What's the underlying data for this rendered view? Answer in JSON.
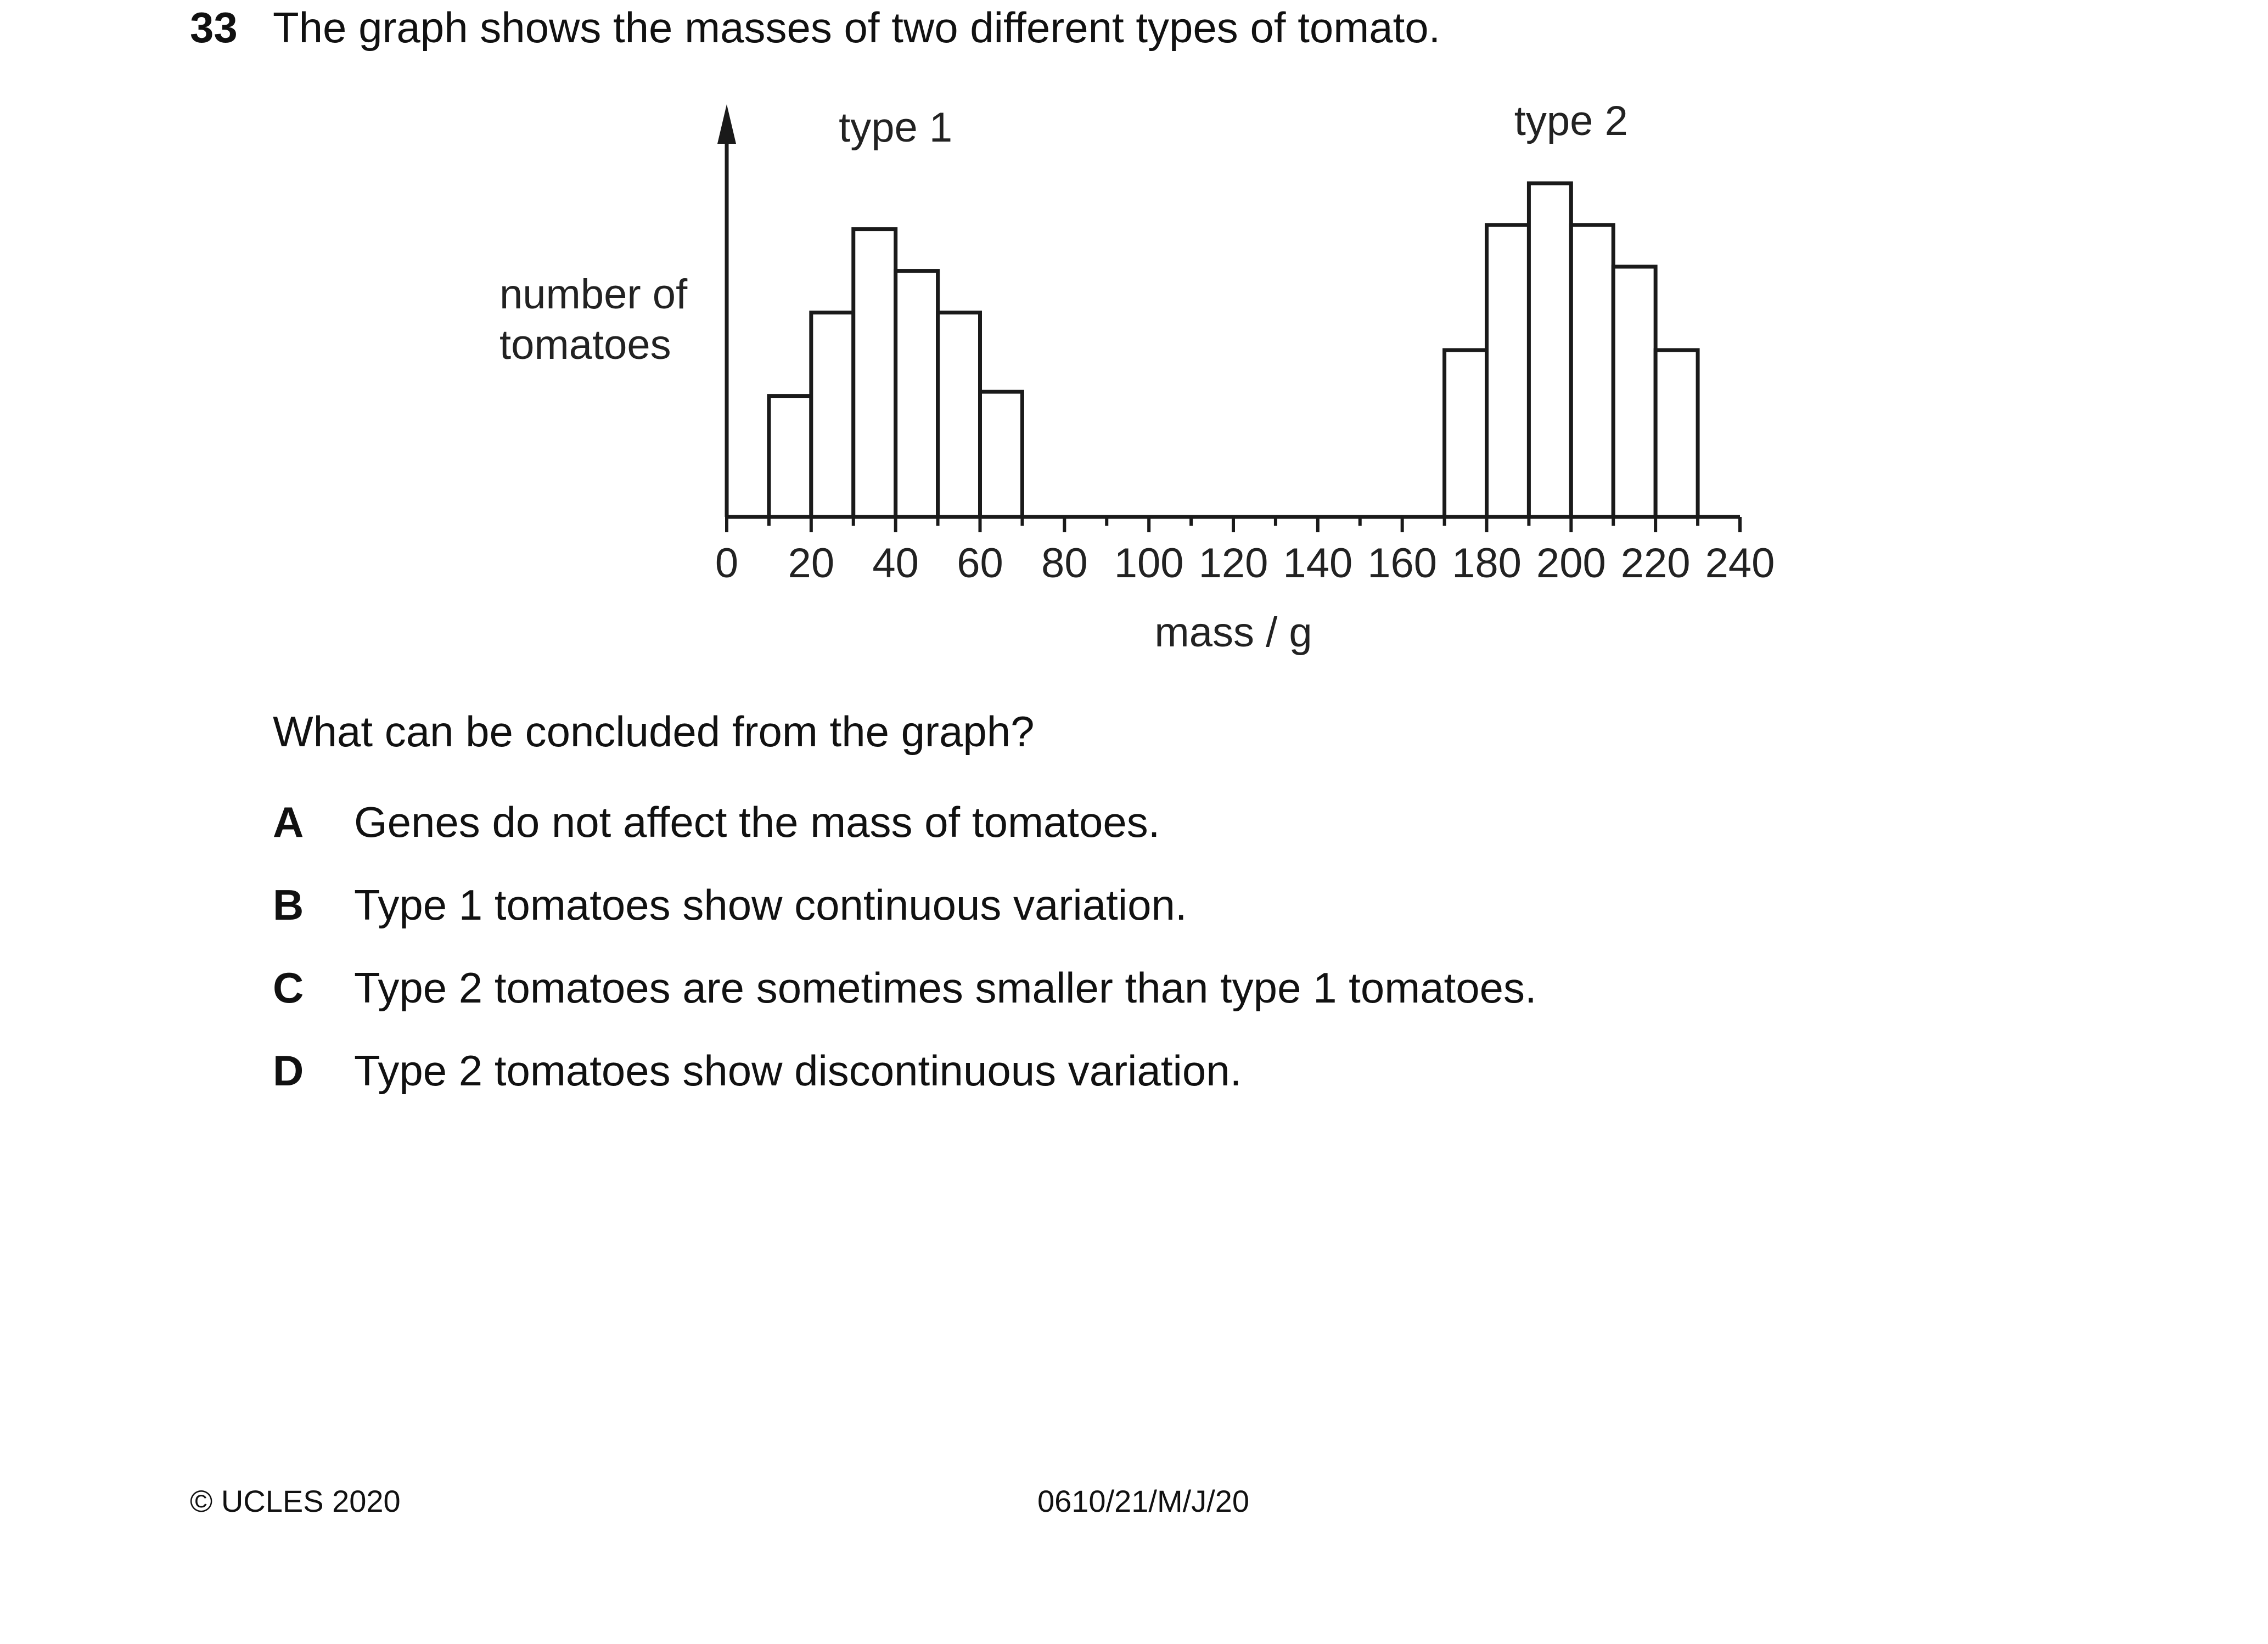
{
  "question": {
    "number": "33",
    "text": "The graph shows the masses of two different types of tomato.",
    "prompt": "What can be concluded from the graph?",
    "options": [
      {
        "letter": "A",
        "text": "Genes do not affect the mass of tomatoes."
      },
      {
        "letter": "B",
        "text": "Type 1 tomatoes show continuous variation."
      },
      {
        "letter": "C",
        "text": "Type 2 tomatoes are sometimes smaller than type 1 tomatoes."
      },
      {
        "letter": "D",
        "text": "Type 2 tomatoes show discontinuous variation."
      }
    ]
  },
  "chart_data": {
    "type": "bar",
    "xlabel": "mass / g",
    "ylabel_lines": [
      "number of",
      "tomatoes"
    ],
    "x_ticks": [
      0,
      20,
      40,
      60,
      80,
      100,
      120,
      140,
      160,
      180,
      200,
      220,
      240
    ],
    "xlim": [
      0,
      240
    ],
    "ylim": [
      0,
      10
    ],
    "series": [
      {
        "name": "type 1",
        "bins": [
          [
            10,
            20
          ],
          [
            20,
            30
          ],
          [
            30,
            40
          ],
          [
            40,
            50
          ],
          [
            50,
            60
          ],
          [
            60,
            70
          ]
        ],
        "values": [
          2.9,
          4.9,
          6.9,
          5.9,
          4.9,
          3.0
        ]
      },
      {
        "name": "type 2",
        "bins": [
          [
            170,
            180
          ],
          [
            180,
            190
          ],
          [
            190,
            200
          ],
          [
            200,
            210
          ],
          [
            210,
            220
          ],
          [
            220,
            230
          ]
        ],
        "values": [
          4.0,
          7.0,
          8.0,
          7.0,
          6.0,
          4.0
        ]
      }
    ]
  },
  "footer": {
    "copyright": "© UCLES 2020",
    "code": "0610/21/M/J/20"
  }
}
